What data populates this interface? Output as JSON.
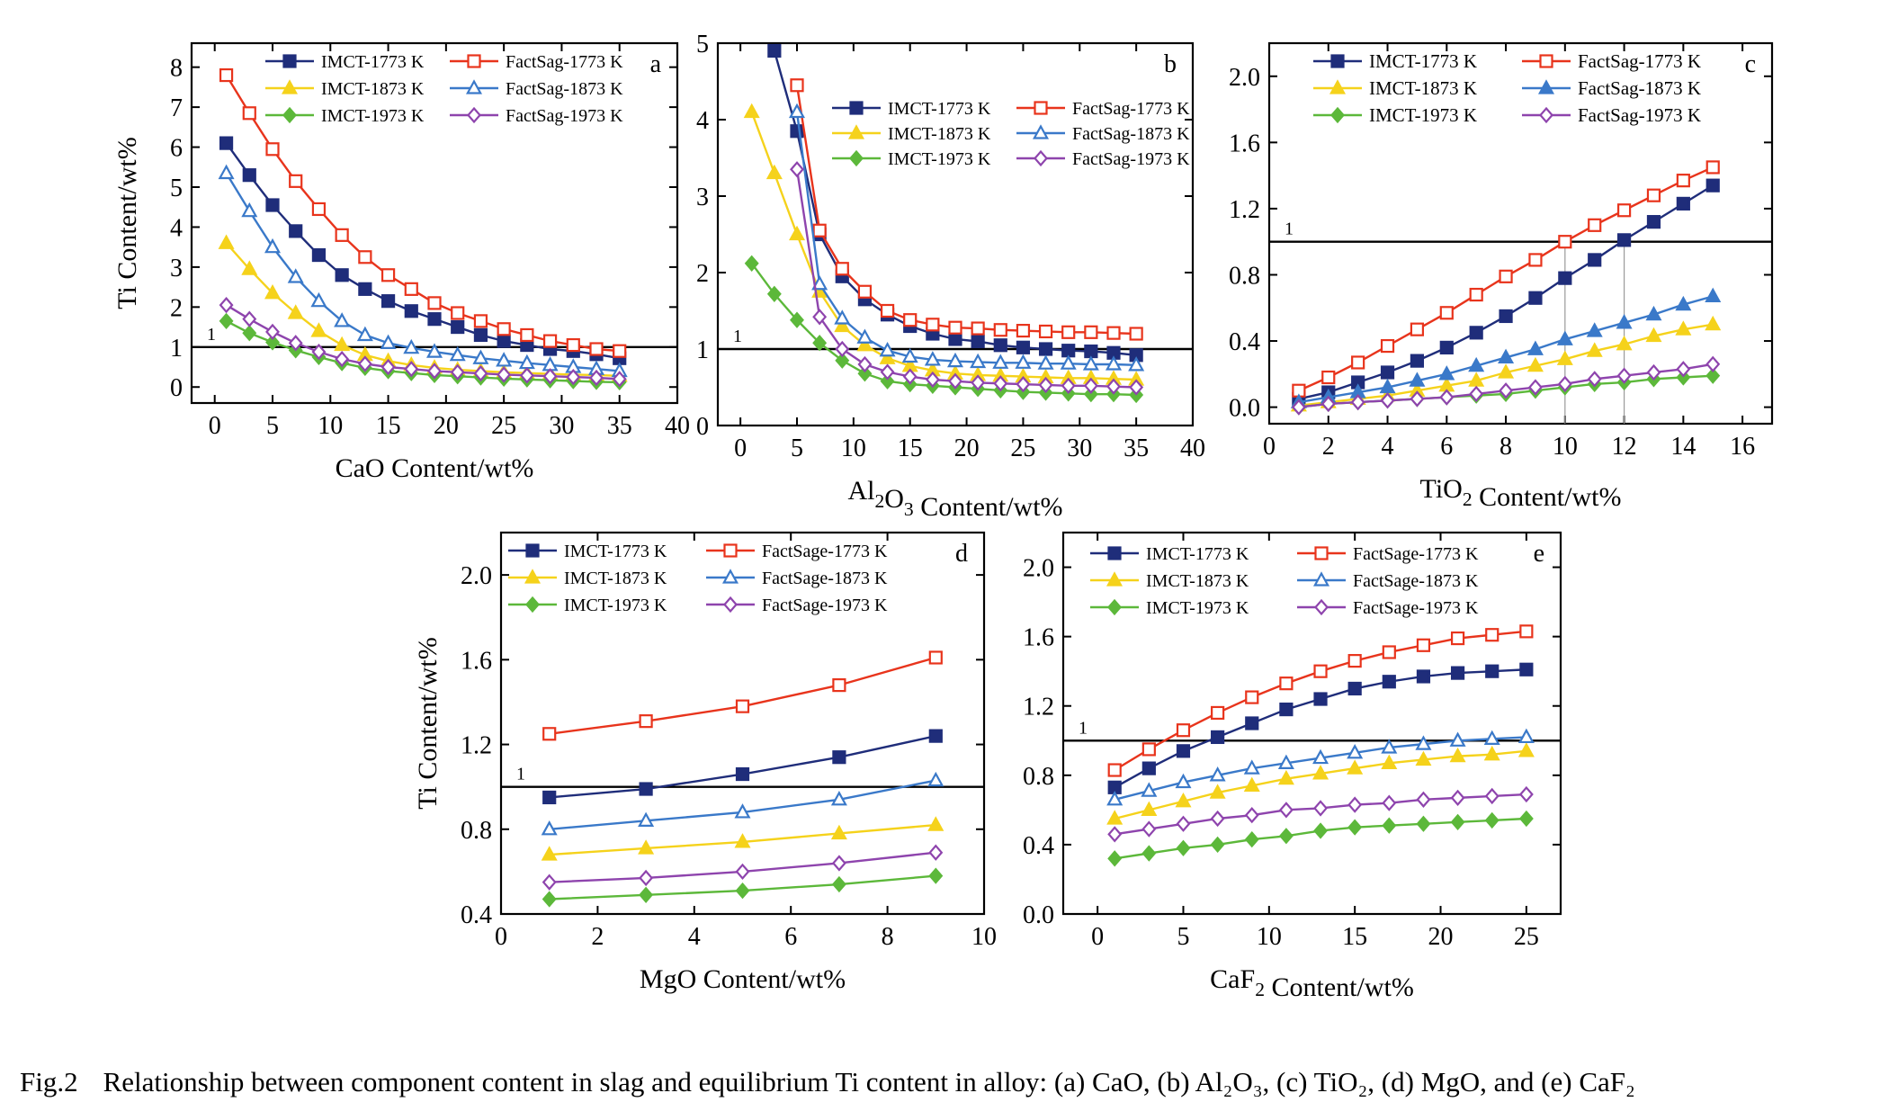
{
  "caption": {
    "label": "Fig.2",
    "text": "Relationship between component content in slag and equilibrium Ti content in alloy: (a) CaO, (b) Al₂O₃, (c) TiO₂, (d) MgO, and (e) CaF₂"
  },
  "colors": {
    "imct_1773": "#1f2d7a",
    "factsage_1773": "#e8341c",
    "imct_1873": "#f5d21b",
    "factsage_1873": "#3a79c9",
    "imct_1973": "#5cb83a",
    "factsage_1973": "#8e44ad"
  },
  "chart_data": [
    {
      "type": "line",
      "panel_letter": "a",
      "xlabel": "CaO Content/wt%",
      "ylabel": "Ti Content/wt%",
      "xlim": [
        -2,
        40
      ],
      "ylim": [
        -0.4,
        8.6
      ],
      "xticks": [
        0,
        5,
        10,
        15,
        20,
        25,
        30,
        35,
        40
      ],
      "yticks": [
        0,
        1,
        2,
        3,
        4,
        5,
        6,
        7,
        8
      ],
      "reference_line": {
        "y": 1,
        "label": "1"
      },
      "legend_position": "top-right",
      "x": [
        1,
        3,
        5,
        7,
        9,
        11,
        13,
        15,
        17,
        19,
        21,
        23,
        25,
        27,
        29,
        31,
        33,
        35
      ],
      "series": [
        {
          "name": "IMCT-1773 K",
          "marker": "square-filled",
          "color_key": "imct_1773",
          "values": [
            6.1,
            5.3,
            4.55,
            3.9,
            3.3,
            2.8,
            2.45,
            2.15,
            1.9,
            1.7,
            1.5,
            1.3,
            1.15,
            1.05,
            0.95,
            0.9,
            0.82,
            0.72
          ]
        },
        {
          "name": "FactSag-1773 K",
          "marker": "square-open",
          "color_key": "factsage_1773",
          "values": [
            7.8,
            6.85,
            5.95,
            5.15,
            4.45,
            3.8,
            3.25,
            2.8,
            2.45,
            2.1,
            1.85,
            1.65,
            1.45,
            1.3,
            1.15,
            1.05,
            0.95,
            0.9
          ]
        },
        {
          "name": "IMCT-1873 K",
          "marker": "triangle-filled",
          "color_key": "imct_1873",
          "values": [
            3.6,
            2.95,
            2.35,
            1.85,
            1.4,
            1.05,
            0.8,
            0.65,
            0.55,
            0.48,
            0.43,
            0.4,
            0.37,
            0.35,
            0.33,
            0.31,
            0.3,
            0.28
          ]
        },
        {
          "name": "FactSag-1873 K",
          "marker": "triangle-open",
          "color_key": "factsage_1873",
          "values": [
            5.35,
            4.4,
            3.5,
            2.75,
            2.15,
            1.65,
            1.3,
            1.1,
            0.98,
            0.88,
            0.8,
            0.72,
            0.66,
            0.6,
            0.55,
            0.5,
            0.45,
            0.4
          ]
        },
        {
          "name": "IMCT-1973 K",
          "marker": "diamond-filled",
          "color_key": "imct_1973",
          "values": [
            1.65,
            1.35,
            1.12,
            0.92,
            0.75,
            0.6,
            0.48,
            0.4,
            0.35,
            0.3,
            0.27,
            0.24,
            0.21,
            0.19,
            0.17,
            0.15,
            0.13,
            0.12
          ]
        },
        {
          "name": "FactSag-1973 K",
          "marker": "diamond-open",
          "color_key": "factsage_1973",
          "values": [
            2.05,
            1.7,
            1.38,
            1.1,
            0.88,
            0.7,
            0.58,
            0.5,
            0.45,
            0.4,
            0.37,
            0.34,
            0.31,
            0.29,
            0.27,
            0.25,
            0.23,
            0.2
          ]
        }
      ]
    },
    {
      "type": "line",
      "panel_letter": "b",
      "xlabel": "Al₂O₃ Content/wt%",
      "xlim": [
        -2,
        40
      ],
      "ylim": [
        0,
        5
      ],
      "xticks": [
        0,
        5,
        10,
        15,
        20,
        25,
        30,
        35,
        40
      ],
      "yticks": [
        0,
        1,
        2,
        3,
        4,
        5
      ],
      "reference_line": {
        "y": 1,
        "label": "1"
      },
      "legend_position": "center-right",
      "x": [
        1,
        3,
        5,
        7,
        9,
        11,
        13,
        15,
        17,
        19,
        21,
        23,
        25,
        27,
        29,
        31,
        33,
        35
      ],
      "series": [
        {
          "name": "IMCT-1773 K",
          "marker": "square-filled",
          "color_key": "imct_1773",
          "values": [
            null,
            4.9,
            3.85,
            2.5,
            1.95,
            1.65,
            1.45,
            1.3,
            1.2,
            1.13,
            1.1,
            1.05,
            1.02,
            1.0,
            0.98,
            0.97,
            0.95,
            0.92
          ]
        },
        {
          "name": "FactSag-1773 K",
          "marker": "square-open",
          "color_key": "factsage_1773",
          "values": [
            null,
            null,
            4.45,
            2.55,
            2.05,
            1.75,
            1.5,
            1.38,
            1.32,
            1.28,
            1.27,
            1.25,
            1.24,
            1.23,
            1.22,
            1.22,
            1.21,
            1.2
          ]
        },
        {
          "name": "IMCT-1873 K",
          "marker": "triangle-filled",
          "color_key": "imct_1873",
          "values": [
            4.1,
            3.3,
            2.5,
            1.75,
            1.3,
            1.05,
            0.88,
            0.78,
            0.72,
            0.68,
            0.66,
            0.65,
            0.64,
            0.63,
            0.62,
            0.62,
            0.61,
            0.6
          ]
        },
        {
          "name": "FactSag-1873 K",
          "marker": "triangle-open",
          "color_key": "factsage_1873",
          "values": [
            null,
            null,
            4.1,
            1.85,
            1.4,
            1.15,
            0.98,
            0.9,
            0.86,
            0.84,
            0.83,
            0.82,
            0.82,
            0.81,
            0.81,
            0.8,
            0.8,
            0.79
          ]
        },
        {
          "name": "IMCT-1973 K",
          "marker": "diamond-filled",
          "color_key": "imct_1973",
          "values": [
            2.12,
            1.72,
            1.38,
            1.08,
            0.85,
            0.68,
            0.58,
            0.54,
            0.52,
            0.5,
            0.48,
            0.46,
            0.44,
            0.43,
            0.42,
            0.41,
            0.41,
            0.4
          ]
        },
        {
          "name": "FactSag-1973 K",
          "marker": "diamond-open",
          "color_key": "factsage_1973",
          "values": [
            null,
            null,
            3.35,
            1.42,
            1.0,
            0.8,
            0.7,
            0.64,
            0.6,
            0.58,
            0.56,
            0.55,
            0.54,
            0.53,
            0.52,
            0.52,
            0.51,
            0.5
          ]
        }
      ]
    },
    {
      "type": "line",
      "panel_letter": "c",
      "xlabel": "TiO₂ Content/wt%",
      "xlim": [
        0,
        17
      ],
      "ylim": [
        -0.1,
        2.2
      ],
      "xticks": [
        0,
        2,
        4,
        6,
        8,
        10,
        12,
        14,
        16
      ],
      "yticks": [
        0.0,
        0.4,
        0.8,
        1.2,
        1.6,
        2.0
      ],
      "ytick_labels": [
        "0.0",
        "0.4",
        "0.8",
        "1.2",
        "1.6",
        "2.0"
      ],
      "reference_line": {
        "y": 1,
        "label": "1"
      },
      "guide_lines_x": [
        10,
        12
      ],
      "legend_position": "top-right",
      "x": [
        1,
        2,
        3,
        4,
        5,
        6,
        7,
        8,
        9,
        10,
        11,
        12,
        13,
        14,
        15
      ],
      "series": [
        {
          "name": "IMCT-1773 K",
          "marker": "square-filled",
          "color_key": "imct_1773",
          "values": [
            0.05,
            0.09,
            0.15,
            0.21,
            0.28,
            0.36,
            0.45,
            0.55,
            0.66,
            0.78,
            0.89,
            1.01,
            1.12,
            1.23,
            1.34
          ]
        },
        {
          "name": "FactSag-1773 K",
          "marker": "square-open",
          "color_key": "factsage_1773",
          "values": [
            0.1,
            0.18,
            0.27,
            0.37,
            0.47,
            0.57,
            0.68,
            0.79,
            0.89,
            1.0,
            1.1,
            1.19,
            1.28,
            1.37,
            1.45
          ]
        },
        {
          "name": "IMCT-1873 K",
          "marker": "triangle-filled",
          "color_key": "imct_1873",
          "values": [
            0.01,
            0.03,
            0.05,
            0.07,
            0.1,
            0.13,
            0.16,
            0.21,
            0.25,
            0.29,
            0.34,
            0.38,
            0.43,
            0.47,
            0.5
          ]
        },
        {
          "name": "FactSag-1873 K",
          "marker": "triangle-filled",
          "color_key": "factsage_1873",
          "values": [
            0.03,
            0.06,
            0.09,
            0.12,
            0.16,
            0.2,
            0.25,
            0.3,
            0.35,
            0.41,
            0.46,
            0.51,
            0.56,
            0.62,
            0.67
          ]
        },
        {
          "name": "IMCT-1973 K",
          "marker": "diamond-filled",
          "color_key": "imct_1973",
          "values": [
            0.0,
            0.02,
            0.03,
            0.04,
            0.05,
            0.06,
            0.07,
            0.08,
            0.1,
            0.12,
            0.14,
            0.15,
            0.17,
            0.18,
            0.19
          ]
        },
        {
          "name": "FactSag-1973 K",
          "marker": "diamond-open",
          "color_key": "factsage_1973",
          "values": [
            0.0,
            0.02,
            0.03,
            0.04,
            0.05,
            0.06,
            0.08,
            0.1,
            0.12,
            0.14,
            0.17,
            0.19,
            0.21,
            0.23,
            0.26
          ]
        }
      ]
    },
    {
      "type": "line",
      "panel_letter": "d",
      "xlabel": "MgO Content/wt%",
      "ylabel": "Ti Content/wt%",
      "xlim": [
        0,
        10
      ],
      "ylim": [
        0.4,
        2.2
      ],
      "xticks": [
        0,
        2,
        4,
        6,
        8,
        10
      ],
      "yticks": [
        0.4,
        0.8,
        1.2,
        1.6,
        2.0
      ],
      "ytick_labels": [
        "0.4",
        "0.8",
        "1.2",
        "1.6",
        "2.0"
      ],
      "reference_line": {
        "y": 1,
        "label": "1"
      },
      "legend_position": "top",
      "x": [
        1,
        3,
        5,
        7,
        9
      ],
      "series": [
        {
          "name": "IMCT-1773 K",
          "marker": "square-filled",
          "color_key": "imct_1773",
          "values": [
            0.95,
            0.99,
            1.06,
            1.14,
            1.24
          ]
        },
        {
          "name": "FactSage-1773 K",
          "marker": "square-open",
          "color_key": "factsage_1773",
          "values": [
            1.25,
            1.31,
            1.38,
            1.48,
            1.61
          ]
        },
        {
          "name": "IMCT-1873 K",
          "marker": "triangle-filled",
          "color_key": "imct_1873",
          "values": [
            0.68,
            0.71,
            0.74,
            0.78,
            0.82
          ]
        },
        {
          "name": "FactSage-1873 K",
          "marker": "triangle-open",
          "color_key": "factsage_1873",
          "values": [
            0.8,
            0.84,
            0.88,
            0.94,
            1.03
          ]
        },
        {
          "name": "IMCT-1973 K",
          "marker": "diamond-filled",
          "color_key": "imct_1973",
          "values": [
            0.47,
            0.49,
            0.51,
            0.54,
            0.58
          ]
        },
        {
          "name": "FactSage-1973 K",
          "marker": "diamond-open",
          "color_key": "factsage_1973",
          "values": [
            0.55,
            0.57,
            0.6,
            0.64,
            0.69
          ]
        }
      ]
    },
    {
      "type": "line",
      "panel_letter": "e",
      "xlabel": "CaF₂ Content/wt%",
      "xlim": [
        -2,
        27
      ],
      "ylim": [
        0,
        2.2
      ],
      "xticks": [
        0,
        5,
        10,
        15,
        20,
        25
      ],
      "yticks": [
        0.0,
        0.4,
        0.8,
        1.2,
        1.6,
        2.0
      ],
      "ytick_labels": [
        "0.0",
        "0.4",
        "0.8",
        "1.2",
        "1.6",
        "2.0"
      ],
      "reference_line": {
        "y": 1,
        "label": "1"
      },
      "legend_position": "top",
      "x": [
        1,
        3,
        5,
        7,
        9,
        11,
        13,
        15,
        17,
        19,
        21,
        23,
        25
      ],
      "series": [
        {
          "name": "IMCT-1773 K",
          "marker": "square-filled",
          "color_key": "imct_1773",
          "values": [
            0.73,
            0.84,
            0.94,
            1.02,
            1.1,
            1.18,
            1.24,
            1.3,
            1.34,
            1.37,
            1.39,
            1.4,
            1.41
          ]
        },
        {
          "name": "FactSage-1773 K",
          "marker": "square-open",
          "color_key": "factsage_1773",
          "values": [
            0.83,
            0.95,
            1.06,
            1.16,
            1.25,
            1.33,
            1.4,
            1.46,
            1.51,
            1.55,
            1.59,
            1.61,
            1.63
          ]
        },
        {
          "name": "IMCT-1873 K",
          "marker": "triangle-filled",
          "color_key": "imct_1873",
          "values": [
            0.55,
            0.6,
            0.65,
            0.7,
            0.74,
            0.78,
            0.81,
            0.84,
            0.87,
            0.89,
            0.91,
            0.92,
            0.94
          ]
        },
        {
          "name": "FactSage-1873 K",
          "marker": "triangle-open",
          "color_key": "factsage_1873",
          "values": [
            0.66,
            0.71,
            0.76,
            0.8,
            0.84,
            0.87,
            0.9,
            0.93,
            0.96,
            0.98,
            1.0,
            1.01,
            1.02
          ]
        },
        {
          "name": "IMCT-1973 K",
          "marker": "diamond-filled",
          "color_key": "imct_1973",
          "values": [
            0.32,
            0.35,
            0.38,
            0.4,
            0.43,
            0.45,
            0.48,
            0.5,
            0.51,
            0.52,
            0.53,
            0.54,
            0.55
          ]
        },
        {
          "name": "FactSage-1973 K",
          "marker": "diamond-open",
          "color_key": "factsage_1973",
          "values": [
            0.46,
            0.49,
            0.52,
            0.55,
            0.57,
            0.6,
            0.61,
            0.63,
            0.64,
            0.66,
            0.67,
            0.68,
            0.69
          ]
        }
      ]
    }
  ]
}
